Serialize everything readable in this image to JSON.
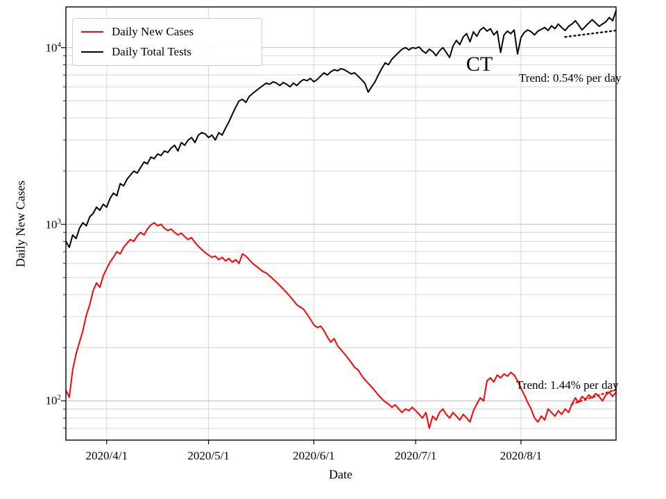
{
  "chart_data": {
    "type": "line",
    "state_label": "CT",
    "xlabel": "Date",
    "ylabel": "Daily New Cases",
    "yscale": "log",
    "ylim": [
      60,
      17000
    ],
    "x_start_date": "2020/3/20",
    "x_days_total": 162,
    "grid": true,
    "legend_position": "upper-left",
    "x_ticks": [
      {
        "day": 12,
        "label": "2020/4/1"
      },
      {
        "day": 42,
        "label": "2020/5/1"
      },
      {
        "day": 73,
        "label": "2020/6/1"
      },
      {
        "day": 103,
        "label": "2020/7/1"
      },
      {
        "day": 134,
        "label": "2020/8/1"
      }
    ],
    "y_ticks": [
      {
        "value": 100,
        "base": "10",
        "exp": "2"
      },
      {
        "value": 1000,
        "base": "10",
        "exp": "3"
      },
      {
        "value": 10000,
        "base": "10",
        "exp": "4"
      }
    ],
    "series": [
      {
        "name": "Daily New Cases",
        "color": "#ff0000",
        "values": [
          115,
          105,
          150,
          185,
          215,
          250,
          305,
          350,
          420,
          465,
          440,
          510,
          560,
          610,
          650,
          700,
          680,
          740,
          780,
          820,
          800,
          860,
          900,
          870,
          940,
          990,
          1020,
          980,
          1000,
          950,
          920,
          940,
          900,
          870,
          890,
          850,
          820,
          840,
          790,
          750,
          720,
          690,
          670,
          650,
          660,
          630,
          650,
          620,
          640,
          610,
          630,
          600,
          680,
          660,
          630,
          600,
          580,
          560,
          540,
          530,
          510,
          490,
          470,
          450,
          430,
          410,
          390,
          370,
          350,
          340,
          330,
          310,
          290,
          270,
          260,
          265,
          250,
          230,
          215,
          225,
          205,
          195,
          185,
          175,
          165,
          155,
          150,
          140,
          132,
          126,
          120,
          114,
          108,
          103,
          99,
          96,
          92,
          95,
          90,
          86,
          90,
          88,
          92,
          88,
          84,
          80,
          86,
          70,
          82,
          78,
          86,
          90,
          84,
          80,
          86,
          82,
          78,
          84,
          80,
          76,
          88,
          96,
          104,
          100,
          130,
          135,
          128,
          140,
          135,
          142,
          138,
          145,
          140,
          130,
          118,
          108,
          98,
          90,
          80,
          76,
          82,
          78,
          90,
          86,
          82,
          88,
          84,
          90,
          86,
          96,
          104,
          98,
          106,
          102,
          108,
          104,
          110,
          106,
          100,
          108,
          112,
          106,
          112
        ]
      },
      {
        "name": "Daily Total Tests",
        "color": "#000000",
        "values": [
          800,
          740,
          870,
          830,
          950,
          1020,
          980,
          1100,
          1150,
          1250,
          1200,
          1300,
          1250,
          1400,
          1500,
          1450,
          1700,
          1650,
          1800,
          1900,
          2000,
          1950,
          2100,
          2250,
          2200,
          2400,
          2350,
          2500,
          2450,
          2600,
          2550,
          2700,
          2800,
          2600,
          2900,
          2800,
          3000,
          3100,
          2900,
          3200,
          3300,
          3250,
          3100,
          3200,
          3000,
          3300,
          3200,
          3500,
          3800,
          4200,
          4600,
          5000,
          5100,
          4900,
          5300,
          5500,
          5700,
          5900,
          6100,
          6300,
          6200,
          6400,
          6300,
          6100,
          6350,
          6200,
          6000,
          6300,
          6100,
          6400,
          6600,
          6500,
          6700,
          6400,
          6600,
          6900,
          7200,
          7000,
          7300,
          7500,
          7400,
          7600,
          7500,
          7300,
          7100,
          7200,
          6900,
          6600,
          6300,
          5600,
          6000,
          6400,
          7000,
          7600,
          8200,
          8000,
          8600,
          9000,
          9400,
          9800,
          10000,
          9700,
          10000,
          9900,
          10100,
          9600,
          9300,
          9800,
          9500,
          9000,
          9600,
          10000,
          9400,
          8800,
          10200,
          11000,
          10400,
          11500,
          12000,
          10800,
          12300,
          11600,
          12600,
          13000,
          12400,
          12800,
          11800,
          12400,
          9400,
          11800,
          12400,
          12000,
          12600,
          9200,
          11400,
          12200,
          12600,
          12300,
          11800,
          12400,
          12700,
          13000,
          12500,
          13300,
          12800,
          13600,
          13000,
          12500,
          13200,
          13600,
          14200,
          13400,
          12600,
          13200,
          13800,
          14400,
          13800,
          13200,
          13600,
          14000,
          14800,
          14200,
          16200
        ]
      }
    ],
    "trends": [
      {
        "name": "cases-trend",
        "label": "Trend: 1.44% per day",
        "rate_pct_per_day": 1.44,
        "color": "#ff0000",
        "start_day": 149,
        "end_day": 162,
        "start_value": 96,
        "end_value": 116
      },
      {
        "name": "tests-trend",
        "label": "Trend: 0.54% per day",
        "rate_pct_per_day": 0.54,
        "color": "#000000",
        "start_day": 147,
        "end_day": 162,
        "start_value": 11500,
        "end_value": 12500
      }
    ],
    "colors": {
      "cases_line": "#ff0000",
      "tests_line": "#000000",
      "grid_minor": "#d2d2d2",
      "grid_major": "#b5b5b5",
      "axes_border": "#000000",
      "legend_border": "#cccccc"
    }
  }
}
